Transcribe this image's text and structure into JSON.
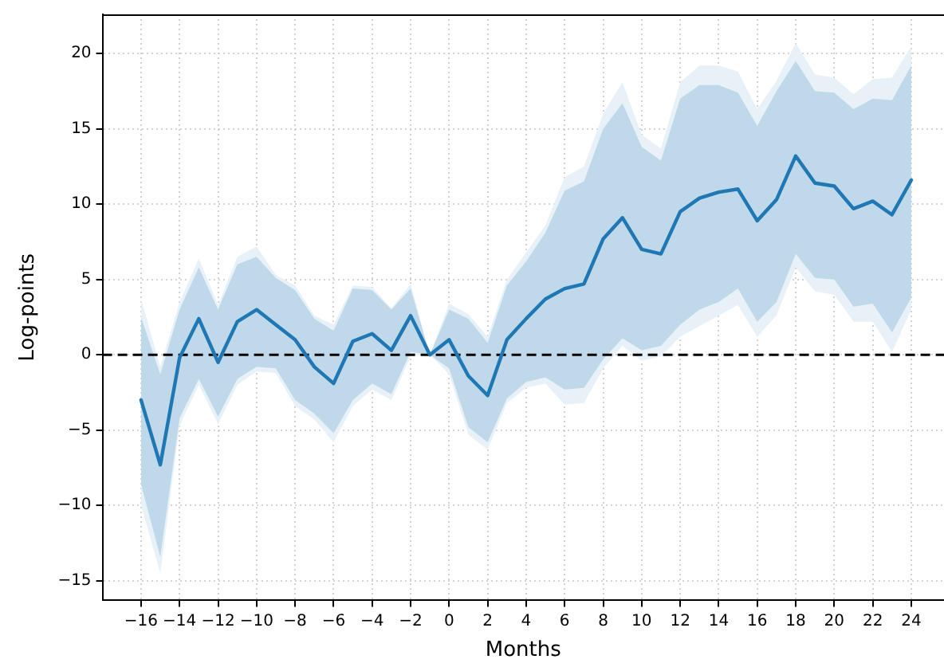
{
  "chart_data": {
    "type": "line",
    "xlabel": "Months",
    "ylabel": "Log-points",
    "x": [
      -16,
      -15,
      -14,
      -13,
      -12,
      -11,
      -10,
      -9,
      -8,
      -7,
      -6,
      -5,
      -4,
      -3,
      -2,
      -1,
      0,
      1,
      2,
      3,
      4,
      5,
      6,
      7,
      8,
      9,
      10,
      11,
      12,
      13,
      14,
      15,
      16,
      17,
      18,
      19,
      20,
      21,
      22,
      23,
      24
    ],
    "series": [
      {
        "color": "#1f77b4",
        "values": [
          -3.0,
          -7.3,
          -0.2,
          2.4,
          -0.5,
          2.2,
          3.0,
          2.0,
          1.0,
          -0.8,
          -1.9,
          0.9,
          1.4,
          0.3,
          2.6,
          0,
          1.0,
          -1.4,
          -2.7,
          1.0,
          2.4,
          3.7,
          4.4,
          4.7,
          7.7,
          9.1,
          7.0,
          6.7,
          9.5,
          10.4,
          10.8,
          11.0,
          8.9,
          10.3,
          13.2,
          11.4,
          11.2,
          9.7,
          10.2,
          9.3,
          11.6
        ],
        "lower": [
          -8.6,
          -13.4,
          -4.2,
          -1.6,
          -4.1,
          -1.6,
          -0.8,
          -0.9,
          -3.0,
          -3.9,
          -5.2,
          -3.0,
          -1.9,
          -2.6,
          0.2,
          0,
          -0.9,
          -4.8,
          -5.8,
          -2.9,
          -1.8,
          -1.5,
          -2.3,
          -2.2,
          -0.3,
          1.1,
          0.3,
          0.6,
          2.0,
          3.0,
          3.5,
          4.4,
          2.2,
          3.5,
          6.7,
          5.1,
          5.0,
          3.2,
          3.4,
          1.5,
          3.8
        ],
        "upper": [
          2.5,
          -1.3,
          3.0,
          5.8,
          3.0,
          6.0,
          6.5,
          5.1,
          4.3,
          2.4,
          1.6,
          4.4,
          4.3,
          3.0,
          4.4,
          0,
          3.0,
          2.4,
          0.8,
          4.6,
          6.2,
          8.1,
          10.9,
          11.5,
          15.0,
          16.7,
          13.8,
          12.9,
          17.0,
          17.9,
          17.9,
          17.4,
          15.2,
          17.5,
          19.5,
          17.5,
          17.4,
          16.3,
          17.0,
          16.9,
          19.2
        ]
      },
      {
        "color": "#e8f1f8",
        "values": [
          null,
          null,
          null,
          null,
          null,
          null,
          null,
          null,
          null,
          null,
          null,
          null,
          null,
          null,
          null,
          null,
          null,
          null,
          null,
          null,
          null,
          null,
          null,
          null,
          null,
          null,
          null,
          null,
          null,
          null,
          null,
          null,
          null,
          null,
          null,
          null,
          null,
          null,
          null,
          null,
          null
        ],
        "lower": [
          -10.0,
          -14.5,
          -4.7,
          -2.0,
          -4.6,
          -2.0,
          -1.1,
          -1.2,
          -3.4,
          -4.3,
          -5.8,
          -3.4,
          -2.3,
          -3.0,
          -0.1,
          0,
          -1.3,
          -5.3,
          -6.3,
          -3.2,
          -2.2,
          -1.9,
          -3.3,
          -3.2,
          -0.9,
          0.6,
          -0.4,
          -0.1,
          1.2,
          1.9,
          2.6,
          3.3,
          1.2,
          2.6,
          5.8,
          4.2,
          4.0,
          2.2,
          2.2,
          0.2,
          3.0
        ],
        "upper": [
          3.7,
          -0.8,
          3.5,
          6.4,
          3.3,
          6.5,
          7.2,
          5.3,
          4.6,
          2.6,
          2.0,
          4.6,
          4.5,
          3.1,
          4.7,
          0,
          3.4,
          2.7,
          1.2,
          5.0,
          6.8,
          8.6,
          11.8,
          12.5,
          16.0,
          18.1,
          14.6,
          13.7,
          18.1,
          19.2,
          19.2,
          18.8,
          16.3,
          18.2,
          20.7,
          18.6,
          18.4,
          17.3,
          18.3,
          18.4,
          20.5
        ]
      }
    ],
    "xlim": [
      -18,
      25.7
    ],
    "xticks": [
      -16,
      -14,
      -12,
      -10,
      -8,
      -6,
      -4,
      -2,
      0,
      2,
      4,
      6,
      8,
      10,
      12,
      14,
      16,
      18,
      20,
      22,
      24
    ],
    "ylim": [
      -16.3,
      22.6
    ],
    "yticks": [
      -15,
      -10,
      -5,
      0,
      5,
      10,
      15,
      20
    ],
    "ref_lines": [
      {
        "axis": "y",
        "value": 0,
        "color": "#000000",
        "line_style": "dashed"
      }
    ],
    "grid": true,
    "marker": "none",
    "line_style": "solid"
  }
}
